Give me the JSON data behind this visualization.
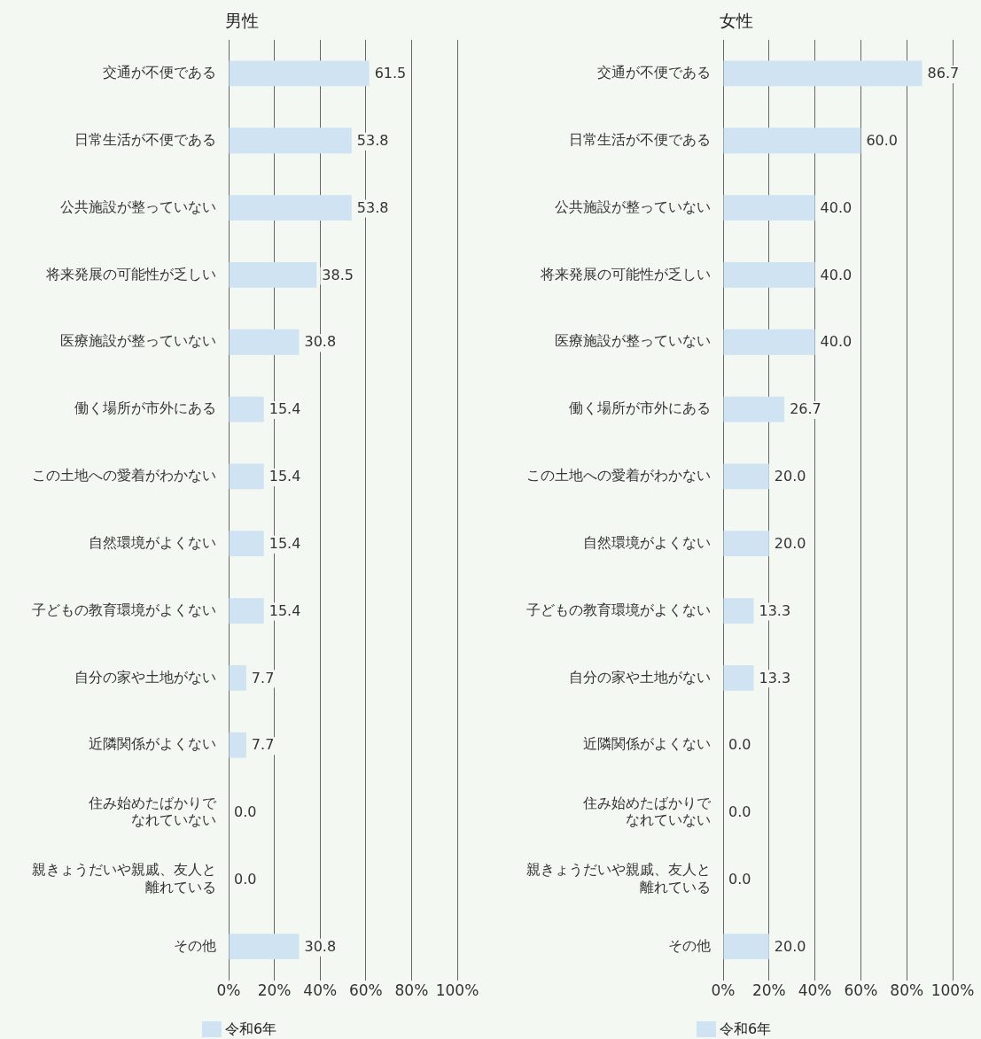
{
  "chart_data": [
    {
      "type": "bar",
      "orientation": "horizontal",
      "title": "男性",
      "categories": [
        "交通が不便である",
        "日常生活が不便である",
        "公共施設が整っていない",
        "将来発展の可能性が乏しい",
        "医療施設が整っていない",
        "働く場所が市外にある",
        "この土地への愛着がわかない",
        "自然環境がよくない",
        "子どもの教育環境がよくない",
        "自分の家や土地がない",
        "近隣関係がよくない",
        "住み始めたばかりでなれていない",
        "親きょうだいや親戚、友人と離れている",
        "その他"
      ],
      "series": [
        {
          "name": "令和6年",
          "color": "#cfe3f3",
          "values": [
            61.5,
            53.8,
            53.8,
            38.5,
            30.8,
            15.4,
            15.4,
            15.4,
            15.4,
            7.7,
            7.7,
            0,
            0,
            30.8
          ],
          "value_labels": [
            "61.5",
            "53.8",
            "53.8",
            "38.5",
            "30.8",
            "15.4",
            "15.4",
            "15.4",
            "15.4",
            "7.7",
            "7.7",
            "0.0",
            "0.0",
            "30.8"
          ]
        }
      ],
      "xlim": [
        0,
        100
      ],
      "xticks": [
        {
          "value": 0,
          "label": "0%"
        },
        {
          "value": 20,
          "label": "20%"
        },
        {
          "value": 40,
          "label": "40%"
        },
        {
          "value": 60,
          "label": "60%"
        },
        {
          "value": 80,
          "label": "80%"
        },
        {
          "value": 100,
          "label": "100%"
        }
      ],
      "grid": "x",
      "legend": "bottom left"
    },
    {
      "type": "bar",
      "orientation": "horizontal",
      "title": "女性",
      "categories": [
        "交通が不便である",
        "日常生活が不便である",
        "公共施設が整っていない",
        "将来発展の可能性が乏しい",
        "医療施設が整っていない",
        "働く場所が市外にある",
        "この土地への愛着がわかない",
        "自然環境がよくない",
        "子どもの教育環境がよくない",
        "自分の家や土地がない",
        "近隣関係がよくない",
        "住み始めたばかりでなれていない",
        "親きょうだいや親戚、友人と離れている",
        "その他"
      ],
      "series": [
        {
          "name": "令和6年",
          "color": "#cfe3f3",
          "values": [
            86.7,
            60.0,
            40.0,
            40.0,
            40.0,
            26.7,
            20.0,
            20.0,
            13.3,
            13.3,
            0,
            0,
            0,
            20.0
          ],
          "value_labels": [
            "86.7",
            "60.0",
            "40.0",
            "40.0",
            "40.0",
            "26.7",
            "20.0",
            "20.0",
            "13.3",
            "13.3",
            "0.0",
            "0.0",
            "0.0",
            "20.0"
          ]
        }
      ],
      "xlim": [
        0,
        100
      ],
      "xticks": [
        {
          "value": 0,
          "label": "0%"
        },
        {
          "value": 20,
          "label": "20%"
        },
        {
          "value": 40,
          "label": "40%"
        },
        {
          "value": 60,
          "label": "60%"
        },
        {
          "value": 80,
          "label": "80%"
        },
        {
          "value": 100,
          "label": "100%"
        }
      ],
      "grid": "x",
      "legend": "bottom left"
    }
  ]
}
